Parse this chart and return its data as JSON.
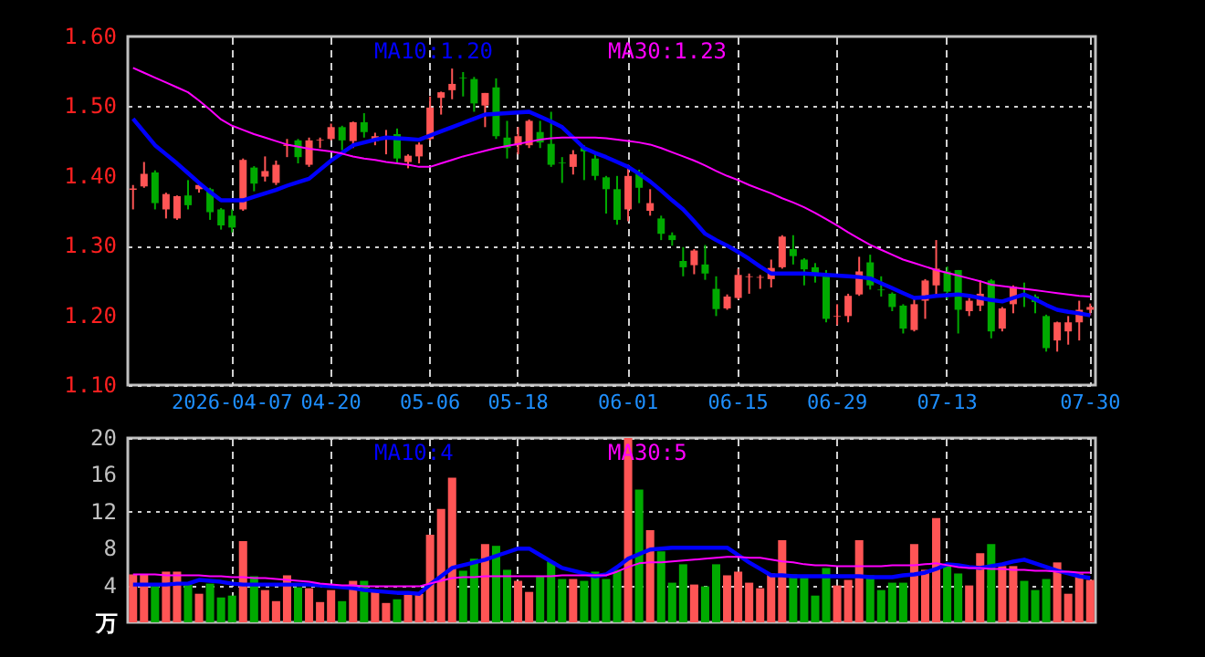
{
  "chart_data": [
    {
      "type": "candlestick",
      "categories": [
        null,
        null,
        null,
        null,
        null,
        null,
        null,
        null,
        null,
        "2026-04-07",
        null,
        null,
        null,
        null,
        null,
        null,
        null,
        null,
        "04-20",
        null,
        null,
        null,
        null,
        null,
        null,
        null,
        null,
        "05-06",
        null,
        null,
        null,
        null,
        null,
        null,
        null,
        "05-18",
        null,
        null,
        null,
        null,
        null,
        null,
        null,
        null,
        null,
        "06-01",
        null,
        null,
        null,
        null,
        null,
        null,
        null,
        null,
        null,
        "06-15",
        null,
        null,
        null,
        null,
        null,
        null,
        null,
        null,
        "06-29",
        null,
        null,
        null,
        null,
        null,
        null,
        null,
        null,
        null,
        "07-13",
        null,
        null,
        null,
        null,
        null,
        null,
        null,
        null,
        null,
        null,
        null,
        null,
        "07-30"
      ],
      "ohlc": [
        [
          1.38,
          1.387,
          1.352,
          1.382
        ],
        [
          1.385,
          1.42,
          1.383,
          1.403
        ],
        [
          1.405,
          1.408,
          1.352,
          1.361
        ],
        [
          1.352,
          1.376,
          1.339,
          1.374
        ],
        [
          1.339,
          1.372,
          1.337,
          1.371
        ],
        [
          1.372,
          1.394,
          1.352,
          1.358
        ],
        [
          1.381,
          1.389,
          1.376,
          1.387
        ],
        [
          1.381,
          1.383,
          1.337,
          1.348
        ],
        [
          1.352,
          1.354,
          1.323,
          1.329
        ],
        [
          1.343,
          1.352,
          1.319,
          1.326
        ],
        [
          1.352,
          1.425,
          1.35,
          1.423
        ],
        [
          1.412,
          1.414,
          1.378,
          1.389
        ],
        [
          1.399,
          1.428,
          1.392,
          1.407
        ],
        [
          1.39,
          1.422,
          1.387,
          1.416
        ],
        [
          1.443,
          1.453,
          1.427,
          1.445
        ],
        [
          1.451,
          1.453,
          1.418,
          1.427
        ],
        [
          1.416,
          1.455,
          1.413,
          1.451
        ],
        [
          1.451,
          1.455,
          1.44,
          1.452
        ],
        [
          1.453,
          1.475,
          1.451,
          1.47
        ],
        [
          1.47,
          1.472,
          1.437,
          1.451
        ],
        [
          1.45,
          1.478,
          1.44,
          1.477
        ],
        [
          1.477,
          1.49,
          1.455,
          1.463
        ],
        [
          1.45,
          1.462,
          1.444,
          1.457
        ],
        [
          1.454,
          1.466,
          1.431,
          1.455
        ],
        [
          1.46,
          1.468,
          1.418,
          1.425
        ],
        [
          1.42,
          1.431,
          1.411,
          1.429
        ],
        [
          1.428,
          1.448,
          1.418,
          1.445
        ],
        [
          1.453,
          1.514,
          1.451,
          1.498
        ],
        [
          1.512,
          1.521,
          1.488,
          1.52
        ],
        [
          1.523,
          1.554,
          1.51,
          1.532
        ],
        [
          1.541,
          1.549,
          1.514,
          1.54
        ],
        [
          1.539,
          1.542,
          1.492,
          1.504
        ],
        [
          1.501,
          1.519,
          1.47,
          1.519
        ],
        [
          1.527,
          1.54,
          1.453,
          1.457
        ],
        [
          1.455,
          1.479,
          1.425,
          1.44
        ],
        [
          1.444,
          1.47,
          1.431,
          1.457
        ],
        [
          1.444,
          1.481,
          1.44,
          1.479
        ],
        [
          1.463,
          1.479,
          1.44,
          1.448
        ],
        [
          1.446,
          1.492,
          1.413,
          1.416
        ],
        [
          1.419,
          1.427,
          1.39,
          1.418
        ],
        [
          1.413,
          1.437,
          1.402,
          1.431
        ],
        [
          1.44,
          1.444,
          1.394,
          1.435
        ],
        [
          1.425,
          1.431,
          1.394,
          1.4
        ],
        [
          1.398,
          1.4,
          1.346,
          1.381
        ],
        [
          1.381,
          1.4,
          1.33,
          1.337
        ],
        [
          1.352,
          1.416,
          1.335,
          1.4
        ],
        [
          1.405,
          1.409,
          1.361,
          1.383
        ],
        [
          1.35,
          1.381,
          1.343,
          1.361
        ],
        [
          1.339,
          1.343,
          1.308,
          1.317
        ],
        [
          1.315,
          1.319,
          1.3,
          1.308
        ],
        [
          1.278,
          1.298,
          1.256,
          1.269
        ],
        [
          1.272,
          1.295,
          1.259,
          1.293
        ],
        [
          1.273,
          1.301,
          1.251,
          1.26
        ],
        [
          1.238,
          1.256,
          1.199,
          1.209
        ],
        [
          1.21,
          1.23,
          1.208,
          1.227
        ],
        [
          1.225,
          1.267,
          1.223,
          1.258
        ],
        [
          1.255,
          1.26,
          1.231,
          1.256
        ],
        [
          1.254,
          1.258,
          1.238,
          1.255
        ],
        [
          1.252,
          1.28,
          1.24,
          1.268
        ],
        [
          1.269,
          1.315,
          1.267,
          1.313
        ],
        [
          1.295,
          1.315,
          1.273,
          1.285
        ],
        [
          1.28,
          1.282,
          1.243,
          1.266
        ],
        [
          1.269,
          1.275,
          1.247,
          1.26
        ],
        [
          1.256,
          1.265,
          1.19,
          1.195
        ],
        [
          1.198,
          1.216,
          1.186,
          1.199
        ],
        [
          1.199,
          1.231,
          1.19,
          1.228
        ],
        [
          1.23,
          1.284,
          1.228,
          1.263
        ],
        [
          1.276,
          1.287,
          1.237,
          1.243
        ],
        [
          1.237,
          1.256,
          1.227,
          1.236
        ],
        [
          1.231,
          1.233,
          1.206,
          1.212
        ],
        [
          1.214,
          1.216,
          1.174,
          1.181
        ],
        [
          1.179,
          1.227,
          1.177,
          1.216
        ],
        [
          1.221,
          1.252,
          1.195,
          1.25
        ],
        [
          1.243,
          1.308,
          1.226,
          1.267
        ],
        [
          1.263,
          1.27,
          1.223,
          1.234
        ],
        [
          1.265,
          1.265,
          1.174,
          1.208
        ],
        [
          1.206,
          1.225,
          1.199,
          1.221
        ],
        [
          1.214,
          1.25,
          1.206,
          1.231
        ],
        [
          1.25,
          1.252,
          1.167,
          1.177
        ],
        [
          1.181,
          1.212,
          1.177,
          1.21
        ],
        [
          1.216,
          1.243,
          1.203,
          1.241
        ],
        [
          1.23,
          1.247,
          1.212,
          1.229
        ],
        [
          1.227,
          1.23,
          1.203,
          1.219
        ],
        [
          1.199,
          1.201,
          1.148,
          1.153
        ],
        [
          1.164,
          1.191,
          1.148,
          1.19
        ],
        [
          1.177,
          1.199,
          1.158,
          1.19
        ],
        [
          1.19,
          1.221,
          1.164,
          1.208
        ],
        [
          1.208,
          1.217,
          1.2,
          1.212
        ]
      ],
      "colors": [
        "#ff5555",
        "#ff5555",
        "#00aa00",
        "#ff5555",
        "#ff5555",
        "#00aa00",
        "#ff5555",
        "#00aa00",
        "#00aa00",
        "#00aa00",
        "#ff5555",
        "#00aa00",
        "#ff5555",
        "#ff5555",
        "#ff5555",
        "#00aa00",
        "#ff5555",
        "#ff5555",
        "#ff5555",
        "#00aa00",
        "#ff5555",
        "#00aa00",
        "#ff5555",
        "#ff5555",
        "#00aa00",
        "#ff5555",
        "#ff5555",
        "#ff5555",
        "#ff5555",
        "#ff5555",
        "#00aa00",
        "#00aa00",
        "#ff5555",
        "#00aa00",
        "#00aa00",
        "#ff5555",
        "#ff5555",
        "#00aa00",
        "#00aa00",
        "#00aa00",
        "#ff5555",
        "#00aa00",
        "#00aa00",
        "#00aa00",
        "#00aa00",
        "#ff5555",
        "#00aa00",
        "#ff5555",
        "#00aa00",
        "#00aa00",
        "#00aa00",
        "#ff5555",
        "#00aa00",
        "#00aa00",
        "#ff5555",
        "#ff5555",
        "#ff5555",
        "#ff5555",
        "#ff5555",
        "#ff5555",
        "#00aa00",
        "#00aa00",
        "#00aa00",
        "#00aa00",
        "#ff5555",
        "#ff5555",
        "#ff5555",
        "#00aa00",
        "#00aa00",
        "#00aa00",
        "#00aa00",
        "#ff5555",
        "#ff5555",
        "#ff5555",
        "#00aa00",
        "#00aa00",
        "#ff5555",
        "#ff5555",
        "#00aa00",
        "#ff5555",
        "#ff5555",
        "#00aa00",
        "#00aa00",
        "#00aa00",
        "#ff5555",
        "#ff5555",
        "#ff5555",
        "#ff5555"
      ],
      "series": [
        {
          "type": "line",
          "name": "MA10:1.20",
          "color": "#0000ff",
          "values": [
            1.482,
            1.463,
            1.444,
            1.431,
            1.418,
            1.404,
            1.39,
            1.377,
            1.365,
            1.365,
            1.365,
            1.37,
            1.375,
            1.38,
            1.386,
            1.391,
            1.396,
            1.409,
            1.422,
            1.433,
            1.444,
            1.448,
            1.452,
            1.455,
            1.454,
            1.453,
            1.452,
            1.458,
            1.464,
            1.47,
            1.476,
            1.482,
            1.488,
            1.489,
            1.49,
            1.491,
            1.492,
            1.485,
            1.478,
            1.47,
            1.455,
            1.44,
            1.433,
            1.427,
            1.42,
            1.413,
            1.403,
            1.392,
            1.379,
            1.365,
            1.352,
            1.335,
            1.317,
            1.308,
            1.3,
            1.291,
            1.281,
            1.27,
            1.26,
            1.26,
            1.26,
            1.26,
            1.259,
            1.258,
            1.257,
            1.256,
            1.255,
            1.253,
            1.246,
            1.239,
            1.232,
            1.225,
            1.226,
            1.228,
            1.229,
            1.23,
            1.228,
            1.225,
            1.222,
            1.22,
            1.225,
            1.23,
            1.223,
            1.215,
            1.208,
            1.205,
            1.203,
            1.2
          ]
        },
        {
          "type": "line",
          "name": "MA30:1.23",
          "color": "#ff00ff",
          "values": [
            1.555,
            1.548,
            1.541,
            1.534,
            1.527,
            1.52,
            1.508,
            1.495,
            1.481,
            1.472,
            1.466,
            1.46,
            1.455,
            1.45,
            1.445,
            1.442,
            1.439,
            1.437,
            1.435,
            1.432,
            1.428,
            1.425,
            1.423,
            1.42,
            1.418,
            1.416,
            1.413,
            1.413,
            1.418,
            1.423,
            1.428,
            1.432,
            1.436,
            1.44,
            1.443,
            1.446,
            1.449,
            1.452,
            1.454,
            1.455,
            1.455,
            1.455,
            1.455,
            1.454,
            1.452,
            1.45,
            1.448,
            1.445,
            1.44,
            1.434,
            1.428,
            1.422,
            1.415,
            1.407,
            1.4,
            1.394,
            1.387,
            1.381,
            1.375,
            1.368,
            1.362,
            1.355,
            1.347,
            1.338,
            1.329,
            1.319,
            1.31,
            1.301,
            1.294,
            1.287,
            1.28,
            1.275,
            1.27,
            1.265,
            1.261,
            1.257,
            1.253,
            1.249,
            1.244,
            1.242,
            1.24,
            1.238,
            1.236,
            1.234,
            1.232,
            1.23,
            1.228,
            1.227
          ]
        }
      ],
      "ylim": [
        1.1,
        1.6
      ],
      "yticks": [
        {
          "value": 1.1,
          "label": "1.10"
        },
        {
          "value": 1.2,
          "label": "1.20"
        },
        {
          "value": 1.3,
          "label": "1.30"
        },
        {
          "value": 1.4,
          "label": "1.40"
        },
        {
          "value": 1.5,
          "label": "1.50"
        },
        {
          "value": 1.6,
          "label": "1.60"
        }
      ],
      "grid": true,
      "legend": "top"
    },
    {
      "type": "bar",
      "categories": [
        null,
        null,
        null,
        null,
        null,
        null,
        null,
        null,
        null,
        null,
        null,
        null,
        null,
        null,
        null,
        null,
        null,
        null,
        null,
        null,
        null,
        null,
        null,
        null,
        null,
        null,
        null,
        null,
        null,
        null,
        null,
        null,
        null,
        null,
        null,
        null,
        null,
        null,
        null,
        null,
        null,
        null,
        null,
        null,
        null,
        null,
        null,
        null,
        null,
        null,
        null,
        null,
        null,
        null,
        null,
        null,
        null,
        null,
        null,
        null,
        null,
        null,
        null,
        null,
        null,
        null,
        null,
        null,
        null,
        null,
        null,
        null,
        null,
        null,
        null,
        null,
        null,
        null,
        null,
        null,
        null,
        null,
        null,
        null,
        null,
        null,
        null,
        null
      ],
      "values": [
        5.2,
        5.2,
        4.1,
        5.5,
        5.5,
        4.1,
        3.1,
        4.2,
        2.7,
        2.9,
        8.8,
        5.0,
        3.5,
        2.3,
        5.1,
        3.8,
        3.7,
        2.2,
        3.5,
        2.3,
        4.5,
        4.5,
        3.5,
        2.1,
        2.5,
        3.0,
        3.1,
        9.5,
        12.3,
        15.7,
        5.6,
        6.9,
        8.5,
        8.3,
        5.7,
        4.5,
        3.3,
        5.0,
        6.6,
        4.7,
        4.7,
        4.5,
        5.5,
        4.7,
        5.7,
        20,
        14.4,
        10.0,
        7.7,
        4.3,
        6.3,
        4.1,
        3.9,
        6.3,
        5.1,
        5.5,
        4.3,
        3.7,
        5.3,
        8.9,
        5.2,
        4.9,
        2.9,
        5.9,
        4.0,
        4.6,
        8.9,
        5.1,
        3.5,
        4.3,
        4.3,
        8.5,
        5.7,
        11.3,
        6.3,
        5.3,
        4.0,
        7.5,
        8.5,
        6.1,
        6.1,
        4.5,
        3.5,
        4.7,
        6.5,
        3.1,
        5.3,
        4.6
      ],
      "colors": [
        "#ff5555",
        "#ff5555",
        "#00aa00",
        "#ff5555",
        "#ff5555",
        "#00aa00",
        "#ff5555",
        "#00aa00",
        "#00aa00",
        "#00aa00",
        "#ff5555",
        "#00aa00",
        "#ff5555",
        "#ff5555",
        "#ff5555",
        "#00aa00",
        "#ff5555",
        "#ff5555",
        "#ff5555",
        "#00aa00",
        "#ff5555",
        "#00aa00",
        "#ff5555",
        "#ff5555",
        "#00aa00",
        "#ff5555",
        "#ff5555",
        "#ff5555",
        "#ff5555",
        "#ff5555",
        "#00aa00",
        "#00aa00",
        "#ff5555",
        "#00aa00",
        "#00aa00",
        "#ff5555",
        "#ff5555",
        "#00aa00",
        "#00aa00",
        "#00aa00",
        "#ff5555",
        "#00aa00",
        "#00aa00",
        "#00aa00",
        "#00aa00",
        "#ff5555",
        "#00aa00",
        "#ff5555",
        "#00aa00",
        "#00aa00",
        "#00aa00",
        "#ff5555",
        "#00aa00",
        "#00aa00",
        "#ff5555",
        "#ff5555",
        "#ff5555",
        "#ff5555",
        "#ff5555",
        "#ff5555",
        "#00aa00",
        "#00aa00",
        "#00aa00",
        "#00aa00",
        "#ff5555",
        "#ff5555",
        "#ff5555",
        "#00aa00",
        "#00aa00",
        "#00aa00",
        "#00aa00",
        "#ff5555",
        "#ff5555",
        "#ff5555",
        "#00aa00",
        "#00aa00",
        "#ff5555",
        "#ff5555",
        "#00aa00",
        "#ff5555",
        "#ff5555",
        "#00aa00",
        "#00aa00",
        "#00aa00",
        "#ff5555",
        "#ff5555",
        "#ff5555",
        "#ff5555"
      ],
      "series": [
        {
          "type": "line",
          "name": "MA10:4",
          "color": "#0000ff",
          "values": [
            4.1,
            4.1,
            4.1,
            4.1,
            4.2,
            4.2,
            4.6,
            4.5,
            4.4,
            4.2,
            4.1,
            4.1,
            4.1,
            4.1,
            4.1,
            4.1,
            4.1,
            4.0,
            3.9,
            3.8,
            3.7,
            3.5,
            3.4,
            3.3,
            3.2,
            3.2,
            3.1,
            4.1,
            5.0,
            5.9,
            6.2,
            6.5,
            6.8,
            7.2,
            7.6,
            8.0,
            8.0,
            7.3,
            6.6,
            5.9,
            5.6,
            5.3,
            5.0,
            5.2,
            6.0,
            6.9,
            7.4,
            7.9,
            8.0,
            8.1,
            8.1,
            8.1,
            8.1,
            8.1,
            8.1,
            7.3,
            6.5,
            5.8,
            5.1,
            5.1,
            5.0,
            5.0,
            5.0,
            5.0,
            5.0,
            5.0,
            5.0,
            4.9,
            4.9,
            4.9,
            5.1,
            5.2,
            5.4,
            5.8,
            6.3,
            6.2,
            6.0,
            5.9,
            6.1,
            6.3,
            6.6,
            6.8,
            6.4,
            6.0,
            5.6,
            5.3,
            5.0,
            4.8
          ]
        },
        {
          "type": "line",
          "name": "MA30:5",
          "color": "#ff00ff",
          "values": [
            5.2,
            5.2,
            5.2,
            5.1,
            5.1,
            5.1,
            5.1,
            5.0,
            5.0,
            4.9,
            4.9,
            4.8,
            4.8,
            4.7,
            4.6,
            4.5,
            4.4,
            4.2,
            4.1,
            4.0,
            4.0,
            3.9,
            3.9,
            3.9,
            3.9,
            3.9,
            3.9,
            4.2,
            4.5,
            4.8,
            4.9,
            4.9,
            5.0,
            5.0,
            5.0,
            5.0,
            5.0,
            5.0,
            5.0,
            5.1,
            5.1,
            5.1,
            5.1,
            5.1,
            5.5,
            6.0,
            6.4,
            6.5,
            6.5,
            6.6,
            6.7,
            6.8,
            6.9,
            7.0,
            7.1,
            7.1,
            7.0,
            7.0,
            6.8,
            6.6,
            6.5,
            6.3,
            6.2,
            6.2,
            6.1,
            6.1,
            6.1,
            6.1,
            6.1,
            6.2,
            6.2,
            6.2,
            6.3,
            6.4,
            6.2,
            6.0,
            5.9,
            5.9,
            5.8,
            5.8,
            5.7,
            5.7,
            5.6,
            5.6,
            5.5,
            5.5,
            5.4,
            5.4
          ]
        }
      ],
      "ylim": [
        0,
        20
      ],
      "yticks": [
        4,
        8,
        12,
        16,
        20
      ],
      "ylabel": "万",
      "grid": true,
      "legend": "top",
      "tick_labels": "y"
    }
  ]
}
